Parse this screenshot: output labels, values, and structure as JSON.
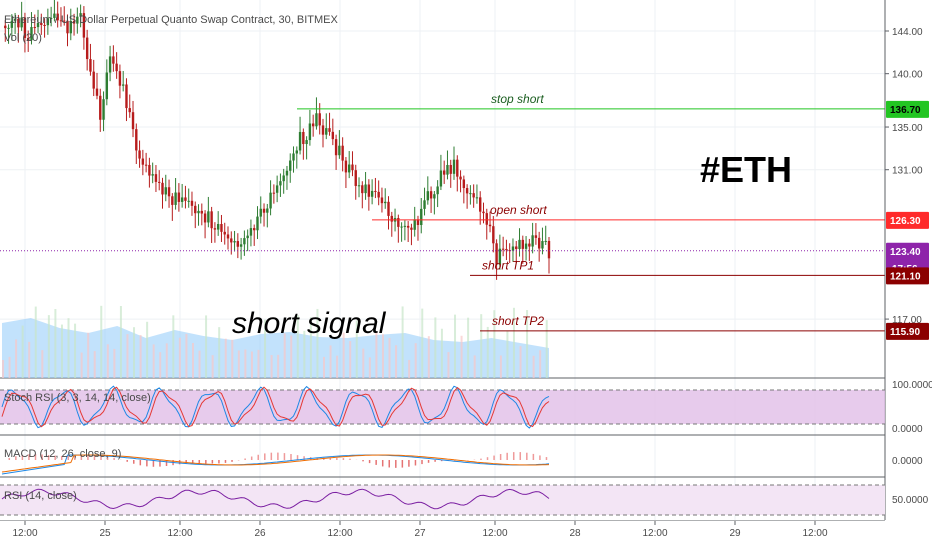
{
  "header": {
    "title": "Ethereum / US Dollar Perpetual Quanto Swap Contract, 30, BITMEX",
    "vol_label": "Vol (20)"
  },
  "colors": {
    "up": "#26a69a",
    "down": "#c0392b",
    "bull_candle": "#2e7d32",
    "bear_candle": "#b71c1c",
    "stop": "#22c522",
    "open_short": "#ff2a2a",
    "tp": "#8b0000",
    "current": "#8e24aa",
    "volume": "#90caf9",
    "stoch_bg": "#e1bee7",
    "rsi_bg": "#f3e5f5",
    "k_line": "#1e88e5",
    "d_line": "#e53935",
    "macd_line": "#1e88e5",
    "signal_line": "#ef6c00",
    "rsi_line": "#7b1fa2"
  },
  "chart_data": {
    "type": "candlestick",
    "symbol": "Ethereum / US Dollar Perpetual Quanto Swap Contract",
    "interval": "30",
    "exchange": "BITMEX",
    "price_axis_ticks": [
      144.0,
      140.0,
      135.0,
      131.0,
      117.0
    ],
    "time_axis_ticks": [
      "12:00",
      "25",
      "12:00",
      "26",
      "12:00",
      "27",
      "12:00",
      "28",
      "12:00",
      "29",
      "12:00"
    ],
    "levels": [
      {
        "label": "stop short",
        "price": 136.7,
        "price_label": "136.70"
      },
      {
        "label": "open short",
        "price": 126.3,
        "price_label": "126.30"
      },
      {
        "label": "",
        "price": 123.4,
        "price_label": "123.40",
        "current": true,
        "countdown": "17:56"
      },
      {
        "label": "short TP1",
        "price": 121.1,
        "price_label": "121.10"
      },
      {
        "label": "short TP2",
        "price": 115.9,
        "price_label": "115.90"
      }
    ],
    "annotations": {
      "ticker": "#ETH",
      "signal": "short signal"
    },
    "close_path": [
      {
        "t": 0,
        "p": 144.5
      },
      {
        "t": 4,
        "p": 145.6
      },
      {
        "t": 8,
        "p": 143.4
      },
      {
        "t": 14,
        "p": 145.2
      },
      {
        "t": 20,
        "p": 144.2
      },
      {
        "t": 24,
        "p": 145.8
      },
      {
        "t": 27,
        "p": 139.5
      },
      {
        "t": 30,
        "p": 136.0
      },
      {
        "t": 33,
        "p": 141.5
      },
      {
        "t": 37,
        "p": 138.5
      },
      {
        "t": 42,
        "p": 132.0
      },
      {
        "t": 48,
        "p": 129.5
      },
      {
        "t": 54,
        "p": 128.0
      },
      {
        "t": 60,
        "p": 127.5
      },
      {
        "t": 66,
        "p": 125.5
      },
      {
        "t": 72,
        "p": 124.0
      },
      {
        "t": 78,
        "p": 126.5
      },
      {
        "t": 84,
        "p": 129.5
      },
      {
        "t": 90,
        "p": 133.5
      },
      {
        "t": 96,
        "p": 135.5
      },
      {
        "t": 102,
        "p": 133.0
      },
      {
        "t": 108,
        "p": 130.0
      },
      {
        "t": 114,
        "p": 128.5
      },
      {
        "t": 120,
        "p": 126.5
      },
      {
        "t": 126,
        "p": 126.0
      },
      {
        "t": 132,
        "p": 129.5
      },
      {
        "t": 138,
        "p": 131.5
      },
      {
        "t": 144,
        "p": 128.5
      },
      {
        "t": 148,
        "p": 126.5
      },
      {
        "t": 151,
        "p": 122.8
      },
      {
        "t": 156,
        "p": 124.0
      },
      {
        "t": 162,
        "p": 124.5
      },
      {
        "t": 167,
        "p": 123.4
      }
    ],
    "volume_path": [
      55,
      60,
      50,
      45,
      52,
      40,
      48,
      42,
      38,
      44,
      46,
      41,
      40,
      43,
      45,
      38,
      36,
      40,
      35,
      30
    ],
    "panes": [
      {
        "name": "stoch_rsi",
        "label": "Stoch RSI (3, 3, 14, 14, close)",
        "ticks": [
          "100.0000",
          "0.0000"
        ],
        "upper_band": 80,
        "lower_band": 20
      },
      {
        "name": "macd",
        "label": "MACD (12, 26, close, 9)",
        "ticks": [
          "0.0000"
        ]
      },
      {
        "name": "rsi",
        "label": "RSI (14, close)",
        "ticks": [
          "50.0000"
        ],
        "upper_band": 70,
        "lower_band": 30
      }
    ]
  }
}
